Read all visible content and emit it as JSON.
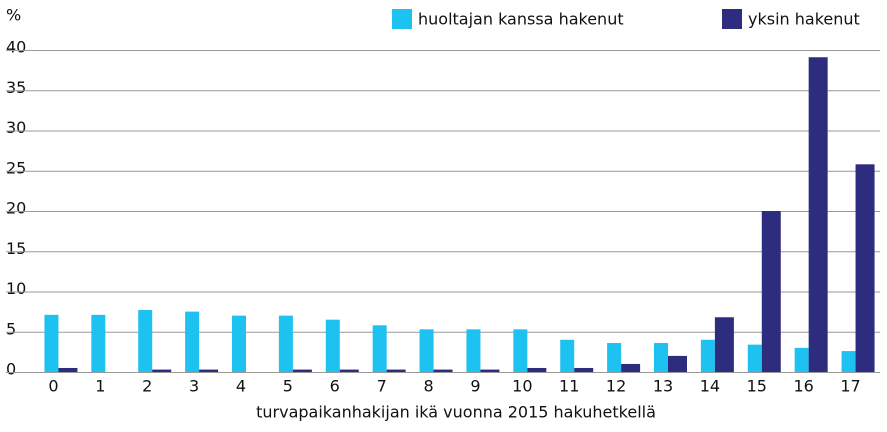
{
  "chart_data": {
    "type": "bar",
    "y_unit": "%",
    "x_label": "turvapaikanhakijan ikä vuonna 2015 hakuhetkellä",
    "categories": [
      "0",
      "1",
      "2",
      "3",
      "4",
      "5",
      "6",
      "7",
      "8",
      "9",
      "10",
      "11",
      "12",
      "13",
      "14",
      "15",
      "16",
      "17"
    ],
    "series": [
      {
        "name": "huoltajan kanssa hakenut",
        "color": "#1ec2f0",
        "values": [
          7.1,
          7.1,
          7.7,
          7.5,
          7.0,
          7.0,
          6.5,
          5.8,
          5.3,
          5.3,
          5.3,
          4.0,
          3.6,
          3.6,
          4.0,
          3.4,
          3.0,
          2.6
        ]
      },
      {
        "name": "yksin hakenut",
        "color": "#2e2c7e",
        "values": [
          0.5,
          0,
          0.3,
          0.3,
          0,
          0.3,
          0.3,
          0.3,
          0.3,
          0.3,
          0.5,
          0.5,
          1.0,
          2.0,
          6.8,
          20.0,
          39.1,
          25.8
        ]
      }
    ],
    "ylim": [
      0,
      40
    ],
    "yticks": [
      0,
      5,
      10,
      15,
      20,
      25,
      30,
      35,
      40
    ],
    "grid": true
  }
}
